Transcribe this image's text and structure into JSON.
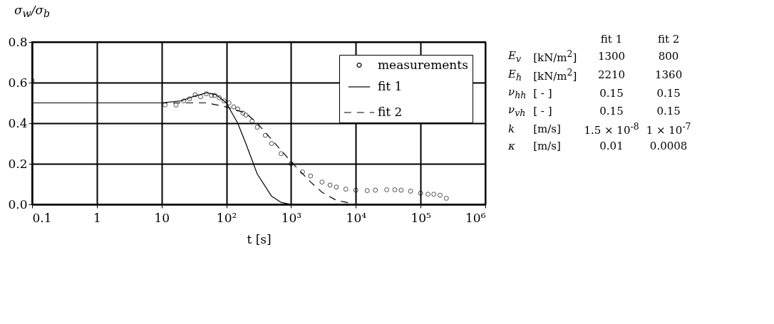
{
  "chart_data": {
    "type": "line",
    "xlabel": "t [s]",
    "ylabel": "σ$_{w}$/σ$_{b}$",
    "log": "x",
    "grid": true,
    "legend": "top right",
    "xlim": [
      0.1,
      1000000
    ],
    "xticks": [
      {
        "value": 0.1,
        "label": "0.1"
      },
      {
        "value": 1,
        "label": "1"
      },
      {
        "value": 10,
        "label": "10"
      },
      {
        "value": 100,
        "label": "10²"
      },
      {
        "value": 1000,
        "label": "10³"
      },
      {
        "value": 10000,
        "label": "10⁴"
      },
      {
        "value": 100000,
        "label": "10⁵"
      },
      {
        "value": 1000000,
        "label": "10⁶"
      }
    ],
    "ylim": [
      0,
      0.8
    ],
    "yticks": [
      {
        "value": 0,
        "label": "0.0"
      },
      {
        "value": 0.2,
        "label": "0.2"
      },
      {
        "value": 0.4,
        "label": "0.4"
      },
      {
        "value": 0.6,
        "label": "0.6"
      },
      {
        "value": 0.8,
        "label": "0.8"
      }
    ],
    "series": [
      {
        "name": "measurements",
        "type": "scatter",
        "marker": "circle",
        "color": "#000000",
        "x": [
          0.1,
          11.3,
          16.7,
          22,
          27,
          33,
          40,
          49,
          59,
          66,
          78,
          92,
          110,
          130,
          150,
          180,
          200,
          250,
          300,
          400,
          500,
          700,
          1000,
          1500,
          2000,
          3000,
          4000,
          5000,
          7000,
          10000,
          15000,
          20000,
          30000,
          40000,
          50000,
          70000,
          100000,
          130000,
          160000,
          200000,
          250000
        ],
        "values": [
          0.61,
          0.49,
          0.49,
          0.51,
          0.52,
          0.54,
          0.53,
          0.545,
          0.537,
          0.537,
          0.525,
          0.51,
          0.5,
          0.48,
          0.47,
          0.45,
          0.44,
          0.41,
          0.38,
          0.34,
          0.3,
          0.25,
          0.2,
          0.16,
          0.14,
          0.11,
          0.095,
          0.085,
          0.075,
          0.07,
          0.068,
          0.07,
          0.072,
          0.072,
          0.07,
          0.065,
          0.055,
          0.05,
          0.05,
          0.045,
          0.03
        ]
      },
      {
        "name": "fit 1",
        "type": "line",
        "line_style": "solid",
        "color": "#000000",
        "x": [
          0.1,
          1,
          10,
          20,
          30,
          50,
          70,
          100,
          150,
          200,
          300,
          500,
          700,
          1000
        ],
        "values": [
          0.5,
          0.5,
          0.5,
          0.51,
          0.53,
          0.55,
          0.54,
          0.5,
          0.4,
          0.3,
          0.15,
          0.04,
          0.01,
          0
        ]
      },
      {
        "name": "fit 2",
        "type": "line",
        "line_style": "dashed",
        "color": "#000000",
        "x": [
          0.1,
          1,
          10,
          30,
          50,
          100,
          200,
          300,
          500,
          1000,
          2000,
          3000,
          5000,
          10000
        ],
        "values": [
          0.5,
          0.5,
          0.5,
          0.5,
          0.5,
          0.48,
          0.45,
          0.4,
          0.32,
          0.21,
          0.11,
          0.06,
          0.02,
          0
        ]
      }
    ],
    "annotations": [
      "fit 1",
      "fit 2",
      "E$_{v}$",
      "[kN/m$^{2}$]",
      "1300",
      "800",
      "E$_{h}$",
      "[kN/m$^{2}$]",
      "2210",
      "1360",
      "ν$_{hh}$",
      "[ - ]",
      "0.15",
      "0.15",
      "ν$_{vh}$",
      "[ - ]",
      "0.15",
      "0.15",
      "k",
      "[m/s]",
      "1.5 × 10$^{-8}$",
      "1 × 10$^{-7}$",
      "κ",
      "[m/s]",
      "0.01",
      "0.0008"
    ]
  }
}
